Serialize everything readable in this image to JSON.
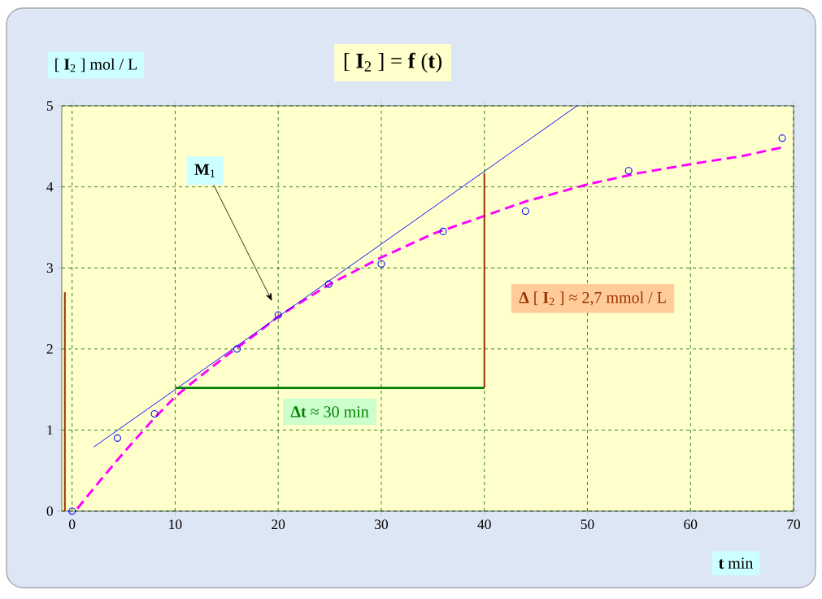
{
  "chart_data": {
    "type": "scatter",
    "title": "[ **I**$_{2}$ ] = **f** (**t**)",
    "xlabel": "**t** min",
    "ylabel": "[ **I**$_{2}$ ]  mol / L",
    "xlim": [
      -1,
      70
    ],
    "ylim": [
      0,
      5
    ],
    "xticks": [
      0,
      10,
      20,
      30,
      40,
      50,
      60,
      70
    ],
    "yticks": [
      0,
      1,
      2,
      3,
      4,
      5
    ],
    "grid": true,
    "series": [
      {
        "color": "#0000ff",
        "marker": "circle",
        "x": [
          0,
          4.4,
          8,
          16,
          20,
          24.9,
          30,
          36,
          44,
          54,
          68.9
        ],
        "values": [
          0,
          0.9,
          1.2,
          2.0,
          2.42,
          2.8,
          3.05,
          3.45,
          3.7,
          4.2,
          4.6
        ]
      },
      {
        "type": "line",
        "color": "#ff00ff",
        "line_style": "dashed",
        "x": [
          0.5,
          3,
          5,
          8,
          10,
          12,
          15,
          18,
          20,
          25,
          30,
          35,
          40,
          44,
          50,
          55,
          60,
          65,
          69
        ],
        "values": [
          0.03,
          0.42,
          0.72,
          1.15,
          1.41,
          1.62,
          1.92,
          2.2,
          2.4,
          2.8,
          3.13,
          3.42,
          3.64,
          3.82,
          4.03,
          4.17,
          4.28,
          4.38,
          4.49
        ]
      },
      {
        "type": "line",
        "color": "#0000ff",
        "x": [
          2.1,
          49.0
        ],
        "values": [
          0.79,
          5
        ]
      },
      {
        "type": "line",
        "color": "#008000",
        "x": [
          10,
          40
        ],
        "values": [
          1.52,
          1.52
        ]
      },
      {
        "type": "line",
        "color": "#993300",
        "x": [
          40,
          40
        ],
        "values": [
          1.52,
          4.17
        ]
      },
      {
        "type": "line",
        "color": "#993300",
        "x": [
          -0.7,
          -0.7
        ],
        "values": [
          0,
          2.7
        ]
      }
    ],
    "annotations": [
      "**M**$_{1}$",
      {
        "text": "**Δt** ≈ 30 min",
        "x": 25,
        "y": 1.52
      },
      {
        "text": "**Δ** [ **I**$_{2}$ ] ≈ 2,7 mmol / L",
        "x": 40,
        "y": 2.85
      }
    ]
  }
}
